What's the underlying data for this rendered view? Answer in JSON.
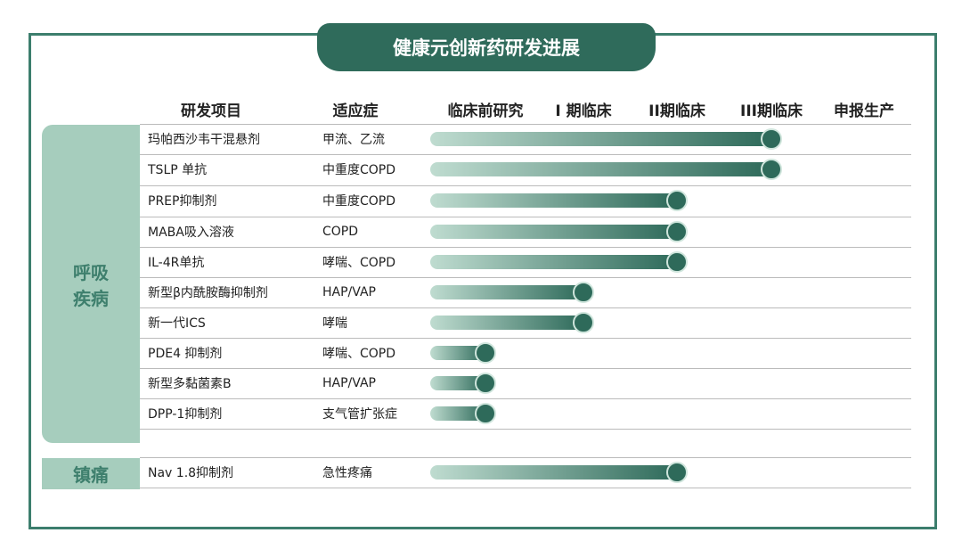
{
  "title": "健康元创新药研发进展",
  "columns": [
    "研发项目",
    "适应症",
    "临床前研究",
    "I 期临床",
    "II期临床",
    "III期临床",
    "申报生产"
  ],
  "groups": [
    {
      "label": "呼吸疾病",
      "rows": [
        {
          "project": "玛帕西沙韦干混悬剂",
          "indication": "甲流、乙流",
          "stage": 3
        },
        {
          "project": "TSLP 单抗",
          "indication": "中重度COPD",
          "stage": 3
        },
        {
          "project": "PREP抑制剂",
          "indication": "中重度COPD",
          "stage": 2
        },
        {
          "project": "MABA吸入溶液",
          "indication": "COPD",
          "stage": 2
        },
        {
          "project": "IL-4R单抗",
          "indication": "哮喘、COPD",
          "stage": 2
        },
        {
          "project": "新型β内酰胺酶抑制剂",
          "indication": "HAP/VAP",
          "stage": 1
        },
        {
          "project": "新一代ICS",
          "indication": "哮喘",
          "stage": 1
        },
        {
          "project": "PDE4 抑制剂",
          "indication": "哮喘、COPD",
          "stage": 0
        },
        {
          "project": "新型多黏菌素B",
          "indication": "HAP/VAP",
          "stage": 0
        },
        {
          "project": "DPP-1抑制剂",
          "indication": "支气管扩张症",
          "stage": 0
        }
      ]
    },
    {
      "label": "镇痛",
      "rows": [
        {
          "project": "Nav 1.8抑制剂",
          "indication": "急性疼痛",
          "stage": 2
        }
      ]
    }
  ]
}
